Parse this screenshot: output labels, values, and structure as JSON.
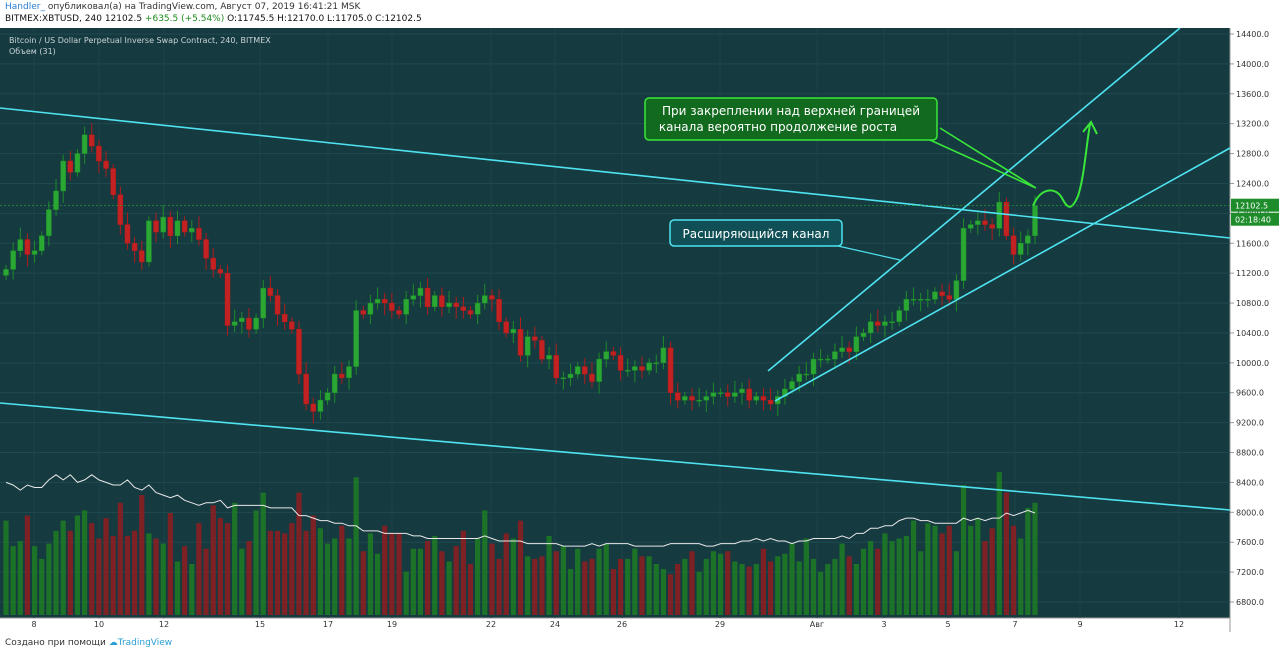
{
  "header": {
    "author": "Handler_",
    "published_text": "опубликовал(а) на TradingView.com, Август 07, 2019 16:41:21 MSK",
    "symbol_line": "BITMEX:XBTUSD, 240",
    "last_value": "12102.5",
    "change_text": "+635.5 (+5.54%)",
    "ohlc_text": "O:11745.5 H:12170.0 L:11705.0 C:12102.5"
  },
  "chart_title": "Bitcoin / US Dollar Perpetual Inverse Swap Contract, 240, BITMEX",
  "volume_label": "Объем (31)",
  "footer": {
    "text": "Создано при помощи",
    "brand": "TradingView"
  },
  "colors": {
    "background": "#153a40",
    "up": "#1e8c2a",
    "down": "#b01c1c",
    "channel": "#4fe3f0",
    "callout": "#2ecc40",
    "label_price": "#1e8c2a"
  },
  "chart_data": {
    "type": "candlestick",
    "y_ticks": [
      "14400.0",
      "14000.0",
      "13600.0",
      "13200.0",
      "12800.0",
      "12400.0",
      "12000.0",
      "11600.0",
      "11200.0",
      "10800.0",
      "10400.0",
      "10000.0",
      "9600.0",
      "9200.0",
      "8800.0",
      "8400.0",
      "8000.0",
      "7600.0",
      "7200.0",
      "6800.0"
    ],
    "ylim": [
      6600,
      14500
    ],
    "x_ticks": [
      "8",
      "10",
      "12",
      "15",
      "17",
      "19",
      "22",
      "24",
      "26",
      "29",
      "Авг",
      "3",
      "5",
      "7",
      "9",
      "12"
    ],
    "price_label": "12102.5",
    "time_label": "02:18:40",
    "closes": [
      11250,
      11500,
      11650,
      11450,
      11500,
      11700,
      12050,
      12300,
      12700,
      12550,
      12800,
      13050,
      12900,
      12700,
      12600,
      12250,
      11850,
      11600,
      11500,
      11350,
      11900,
      11750,
      11950,
      11700,
      11900,
      11750,
      11800,
      11650,
      11400,
      11250,
      11200,
      10500,
      10550,
      10600,
      10450,
      10600,
      11000,
      10900,
      10650,
      10550,
      10450,
      9850,
      9450,
      9350,
      9500,
      9600,
      9850,
      9800,
      9950,
      10700,
      10650,
      10800,
      10850,
      10800,
      10700,
      10650,
      10850,
      10900,
      11000,
      10750,
      10900,
      10750,
      10800,
      10750,
      10700,
      10650,
      10800,
      10900,
      10850,
      10550,
      10400,
      10450,
      10100,
      10350,
      10300,
      10050,
      10100,
      9800,
      9800,
      9850,
      9950,
      9850,
      9750,
      10050,
      10150,
      10100,
      9900,
      9900,
      9950,
      9900,
      10000,
      10000,
      10200,
      9600,
      9500,
      9550,
      9500,
      9500,
      9550,
      9600,
      9600,
      9550,
      9600,
      9650,
      9500,
      9550,
      9500,
      9450,
      9550,
      9650,
      9750,
      9850,
      9850,
      10050,
      10050,
      10050,
      10150,
      10200,
      10150,
      10350,
      10400,
      10550,
      10500,
      10550,
      10550,
      10700,
      10850,
      10850,
      10850,
      10850,
      10950,
      10900,
      10850,
      11100,
      11800,
      11850,
      11900,
      11850,
      11800,
      12150,
      11700,
      11450,
      11600,
      11700,
      12102.5
    ],
    "volume": [
      37,
      27,
      29,
      39,
      27,
      22,
      28,
      33,
      37,
      33,
      39,
      41,
      36,
      30,
      38,
      31,
      44,
      31,
      33,
      47,
      32,
      30,
      28,
      40,
      21,
      27,
      20,
      36,
      26,
      43,
      38,
      36,
      44,
      26,
      29,
      41,
      48,
      33,
      33,
      32,
      36,
      48,
      33,
      39,
      34,
      28,
      30,
      35,
      30,
      54,
      25,
      32,
      24,
      35,
      32,
      32,
      17,
      26,
      26,
      29,
      31,
      25,
      21,
      27,
      33,
      20,
      30,
      41,
      28,
      22,
      32,
      30,
      37,
      23,
      22,
      23,
      31,
      25,
      27,
      18,
      26,
      21,
      22,
      26,
      28,
      18,
      22,
      22,
      26,
      23,
      23,
      20,
      18,
      16,
      20,
      22,
      25,
      17,
      22,
      25,
      24,
      25,
      21,
      20,
      19,
      20,
      26,
      21,
      23,
      24,
      28,
      21,
      30,
      22,
      17,
      20,
      22,
      28,
      23,
      20,
      26,
      29,
      26,
      32,
      29,
      30,
      31,
      37,
      25,
      36,
      35,
      32,
      35,
      25,
      51,
      35,
      38,
      29,
      34,
      56,
      48,
      35,
      30,
      42,
      44
    ],
    "volume_ma": [
      52,
      51,
      49,
      51,
      50,
      50,
      53,
      55,
      53,
      55,
      52,
      53,
      55,
      53,
      52,
      51,
      51,
      53,
      50,
      49,
      51,
      48,
      47,
      46,
      47,
      45,
      44,
      43,
      44,
      44,
      45,
      42,
      43,
      43,
      43,
      43,
      43,
      42,
      42,
      42,
      42,
      39,
      39,
      38,
      37,
      37,
      36,
      36,
      35,
      35,
      33,
      33,
      33,
      32,
      32,
      32,
      32,
      31,
      31,
      30,
      30,
      30,
      30,
      30,
      30,
      30,
      30,
      31,
      30,
      29,
      29,
      29,
      29,
      28,
      28,
      28,
      28,
      28,
      27,
      27,
      27,
      27,
      28,
      27,
      28,
      28,
      28,
      28,
      27,
      27,
      27,
      27,
      27,
      28,
      28,
      28,
      28,
      28,
      27,
      27,
      28,
      28,
      28,
      29,
      29,
      30,
      29,
      30,
      29,
      29,
      28,
      29,
      29,
      30,
      30,
      30,
      30,
      31,
      30,
      32,
      32,
      34,
      34,
      35,
      35,
      37,
      38,
      38,
      37,
      37,
      36,
      36,
      36,
      36,
      38,
      37,
      38,
      37,
      38,
      38,
      40,
      39,
      40,
      41,
      40
    ],
    "annotations": [
      {
        "text": "Расширяющийся канал"
      },
      {
        "text": "При закреплении над верхней границей канала вероятно продолжение роста"
      }
    ]
  }
}
